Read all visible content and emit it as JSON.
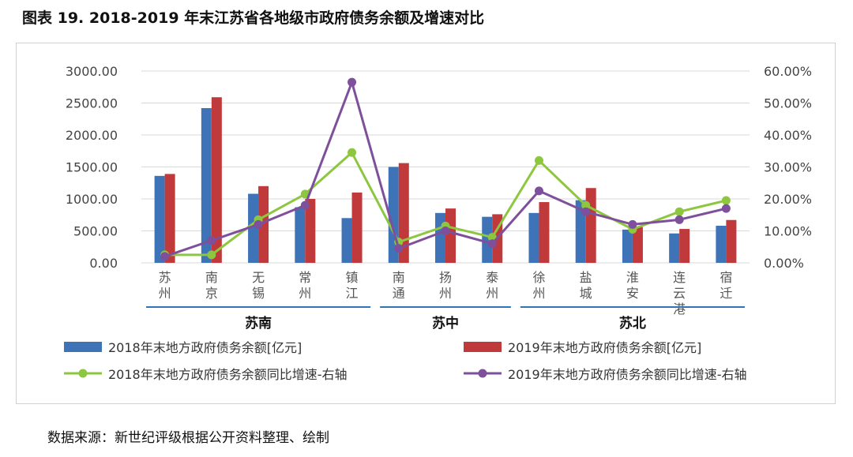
{
  "figure_title": "图表 19. 2018-2019 年末江苏省各地级市政府债务余额及增速对比",
  "source": "数据来源：新世纪评级根据公开资料整理、绘制",
  "colors": {
    "bar2018": "#3F73B8",
    "bar2019": "#C0393B",
    "line2018": "#8DC63F",
    "line2019": "#7E4F9A",
    "grid": "#d9d9d9",
    "group_line": "#2E75B6"
  },
  "chart_data": {
    "type": "bar",
    "categories": [
      "苏州",
      "南京",
      "无锡",
      "常州",
      "镇江",
      "南通",
      "扬州",
      "泰州",
      "徐州",
      "盐城",
      "淮安",
      "连云港",
      "宿迁"
    ],
    "groups": [
      {
        "label": "苏南",
        "members": [
          "苏州",
          "南京",
          "无锡",
          "常州",
          "镇江"
        ]
      },
      {
        "label": "苏中",
        "members": [
          "南通",
          "扬州",
          "泰州"
        ]
      },
      {
        "label": "苏北",
        "members": [
          "徐州",
          "盐城",
          "淮安",
          "连云港",
          "宿迁"
        ]
      }
    ],
    "series": [
      {
        "name": "2018年末地方政府债务余额[亿元]",
        "type": "bar",
        "axis": "left",
        "values": [
          1360,
          2420,
          1080,
          870,
          700,
          1500,
          780,
          720,
          780,
          980,
          520,
          460,
          580
        ]
      },
      {
        "name": "2019年末地方政府债务余额[亿元]",
        "type": "bar",
        "axis": "left",
        "values": [
          1390,
          2590,
          1200,
          1000,
          1100,
          1560,
          850,
          760,
          950,
          1170,
          560,
          530,
          670
        ]
      },
      {
        "name": "2018年末地方政府债务余额同比增速-右轴",
        "type": "line",
        "axis": "right",
        "values": [
          2.5,
          2.5,
          13.5,
          21.5,
          34.5,
          6.5,
          11.5,
          8.0,
          32.0,
          18.0,
          10.5,
          16.0,
          19.5
        ]
      },
      {
        "name": "2019年末地方政府债务余额同比增速-右轴",
        "type": "line",
        "axis": "right",
        "values": [
          2.0,
          7.0,
          12.0,
          18.0,
          56.5,
          4.5,
          10.0,
          6.0,
          22.5,
          16.0,
          12.0,
          13.5,
          17.0
        ]
      }
    ],
    "y_left": {
      "min": 0,
      "max": 3000,
      "ticks": [
        "0.00",
        "500.00",
        "1000.00",
        "1500.00",
        "2000.00",
        "2500.00",
        "3000.00"
      ]
    },
    "y_right": {
      "min": 0,
      "max": 60,
      "ticks": [
        "0.00%",
        "10.00%",
        "20.00%",
        "30.00%",
        "40.00%",
        "50.00%",
        "60.00%"
      ]
    },
    "grid": true,
    "legend_position": "bottom"
  }
}
